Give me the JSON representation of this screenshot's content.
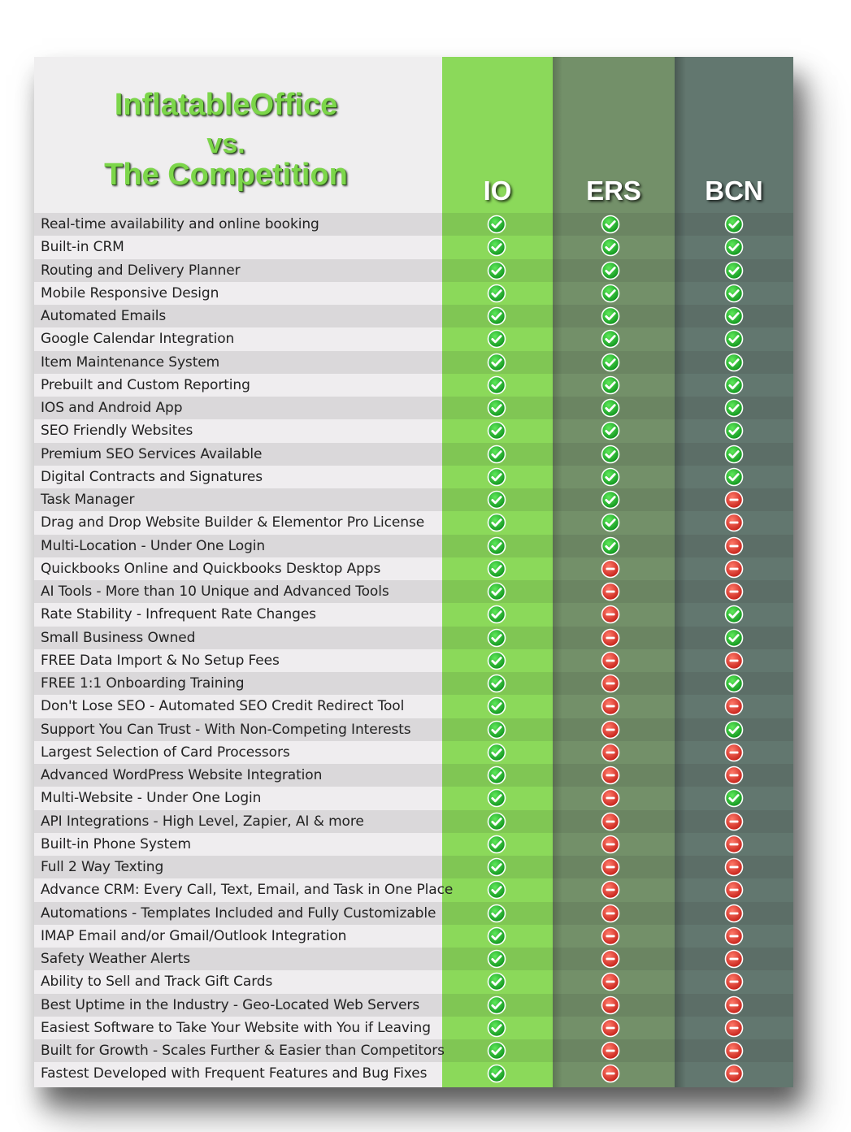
{
  "header": {
    "title_line1": "InflatableOffice",
    "title_line2": "vs.",
    "title_line3": "The Competition"
  },
  "columns": [
    {
      "key": "io",
      "label": "IO",
      "color": "#8bd95a"
    },
    {
      "key": "ers",
      "label": "ERS",
      "color": "#739069"
    },
    {
      "key": "bcn",
      "label": "BCN",
      "color": "#62776f"
    }
  ],
  "icons": {
    "yes": "green-check-circle-icon",
    "no": "red-minus-circle-icon"
  },
  "features": [
    {
      "label": "Real-time availability and online booking",
      "io": true,
      "ers": true,
      "bcn": true
    },
    {
      "label": "Built-in CRM",
      "io": true,
      "ers": true,
      "bcn": true
    },
    {
      "label": "Routing and Delivery Planner",
      "io": true,
      "ers": true,
      "bcn": true
    },
    {
      "label": "Mobile Responsive Design",
      "io": true,
      "ers": true,
      "bcn": true
    },
    {
      "label": "Automated Emails",
      "io": true,
      "ers": true,
      "bcn": true
    },
    {
      "label": "Google Calendar Integration",
      "io": true,
      "ers": true,
      "bcn": true
    },
    {
      "label": "Item Maintenance System",
      "io": true,
      "ers": true,
      "bcn": true
    },
    {
      "label": "Prebuilt and Custom Reporting",
      "io": true,
      "ers": true,
      "bcn": true
    },
    {
      "label": "IOS and Android App",
      "io": true,
      "ers": true,
      "bcn": true
    },
    {
      "label": "SEO Friendly Websites",
      "io": true,
      "ers": true,
      "bcn": true
    },
    {
      "label": "Premium SEO Services Available",
      "io": true,
      "ers": true,
      "bcn": true
    },
    {
      "label": "Digital Contracts and Signatures",
      "io": true,
      "ers": true,
      "bcn": true
    },
    {
      "label": "Task Manager",
      "io": true,
      "ers": true,
      "bcn": false
    },
    {
      "label": "Drag and Drop Website Builder & Elementor Pro License",
      "io": true,
      "ers": true,
      "bcn": false
    },
    {
      "label": "Multi-Location - Under One Login",
      "io": true,
      "ers": true,
      "bcn": false
    },
    {
      "label": "Quickbooks Online and Quickbooks Desktop Apps",
      "io": true,
      "ers": false,
      "bcn": false
    },
    {
      "label": "AI Tools - More than 10 Unique and Advanced Tools",
      "io": true,
      "ers": false,
      "bcn": false
    },
    {
      "label": "Rate Stability - Infrequent Rate Changes",
      "io": true,
      "ers": false,
      "bcn": true
    },
    {
      "label": "Small Business Owned",
      "io": true,
      "ers": false,
      "bcn": true
    },
    {
      "label": "FREE Data Import & No Setup Fees",
      "io": true,
      "ers": false,
      "bcn": false
    },
    {
      "label": "FREE 1:1 Onboarding Training",
      "io": true,
      "ers": false,
      "bcn": true
    },
    {
      "label": "Don't Lose SEO - Automated SEO Credit Redirect Tool",
      "io": true,
      "ers": false,
      "bcn": false
    },
    {
      "label": "Support You Can Trust - With Non-Competing Interests",
      "io": true,
      "ers": false,
      "bcn": true
    },
    {
      "label": "Largest Selection of Card Processors",
      "io": true,
      "ers": false,
      "bcn": false
    },
    {
      "label": "Advanced WordPress Website Integration",
      "io": true,
      "ers": false,
      "bcn": false
    },
    {
      "label": "Multi-Website - Under One Login",
      "io": true,
      "ers": false,
      "bcn": true
    },
    {
      "label": "API Integrations - High Level, Zapier, AI & more",
      "io": true,
      "ers": false,
      "bcn": false
    },
    {
      "label": "Built-in Phone System",
      "io": true,
      "ers": false,
      "bcn": false
    },
    {
      "label": "Full 2 Way Texting",
      "io": true,
      "ers": false,
      "bcn": false
    },
    {
      "label": "Advance CRM: Every Call, Text, Email, and Task in One Place",
      "io": true,
      "ers": false,
      "bcn": false
    },
    {
      "label": "Automations - Templates Included and Fully Customizable",
      "io": true,
      "ers": false,
      "bcn": false
    },
    {
      "label": "IMAP Email and/or Gmail/Outlook Integration",
      "io": true,
      "ers": false,
      "bcn": false
    },
    {
      "label": "Safety Weather Alerts",
      "io": true,
      "ers": false,
      "bcn": false
    },
    {
      "label": "Ability to Sell and Track Gift Cards",
      "io": true,
      "ers": false,
      "bcn": false
    },
    {
      "label": "Best Uptime in the Industry - Geo-Located Web Servers",
      "io": true,
      "ers": false,
      "bcn": false
    },
    {
      "label": "Easiest Software to Take Your Website with You if Leaving",
      "io": true,
      "ers": false,
      "bcn": false
    },
    {
      "label": "Built for Growth - Scales Further & Easier than Competitors",
      "io": true,
      "ers": false,
      "bcn": false
    },
    {
      "label": "Fastest Developed with Frequent Features and Bug Fixes",
      "io": true,
      "ers": false,
      "bcn": false
    }
  ]
}
